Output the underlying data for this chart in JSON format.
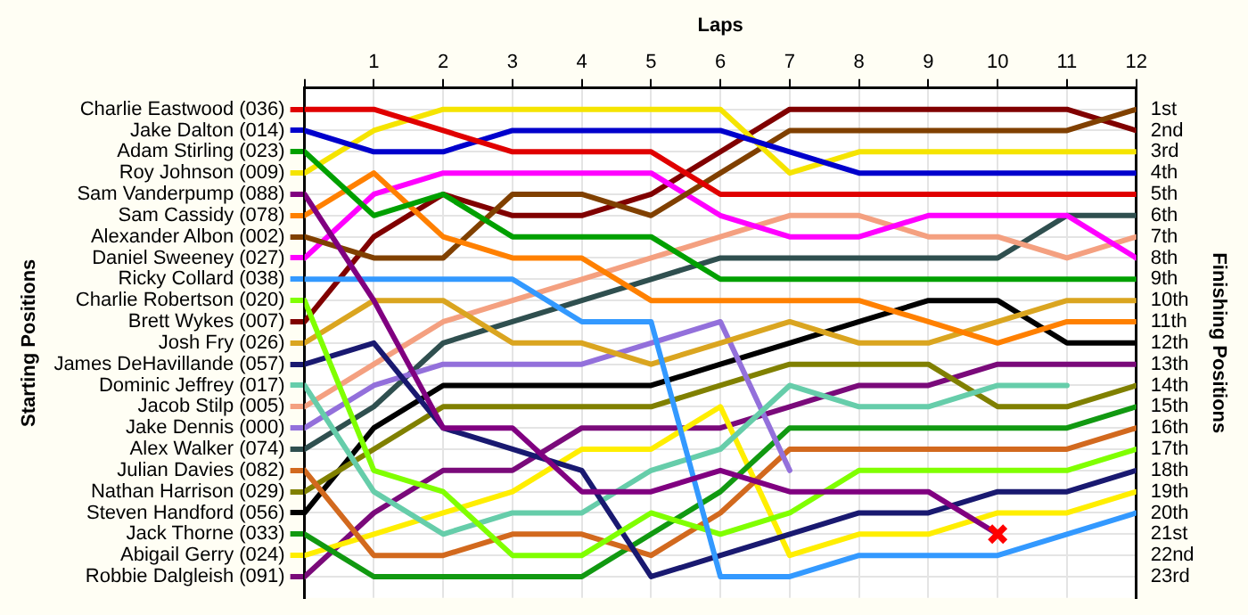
{
  "chart_data": {
    "type": "line",
    "xlabel": "Laps",
    "annotations": [
      "Starting Positions"
    ],
    "y2label": "Finishing Positions",
    "x": [
      0,
      1,
      2,
      3,
      4,
      5,
      6,
      7,
      8,
      9,
      10,
      11,
      12
    ],
    "xlim": [
      0,
      12
    ],
    "xticks": [
      {
        "value": 0,
        "label": null
      },
      1,
      2,
      3,
      4,
      5,
      6,
      7,
      8,
      9,
      10,
      11,
      12
    ],
    "y2lim": [
      24,
      0
    ],
    "y2ticks": [
      {
        "value": 1,
        "label": "1st"
      },
      {
        "value": 2,
        "label": "2nd"
      },
      {
        "value": 3,
        "label": "3rd"
      },
      {
        "value": 4,
        "label": "4th"
      },
      {
        "value": 5,
        "label": "5th"
      },
      {
        "value": 6,
        "label": "6th"
      },
      {
        "value": 7,
        "label": "7th"
      },
      {
        "value": 8,
        "label": "8th"
      },
      {
        "value": 9,
        "label": "9th"
      },
      {
        "value": 10,
        "label": "10th"
      },
      {
        "value": 11,
        "label": "11th"
      },
      {
        "value": 12,
        "label": "12th"
      },
      {
        "value": 13,
        "label": "13th"
      },
      {
        "value": 14,
        "label": "14th"
      },
      {
        "value": 15,
        "label": "15th"
      },
      {
        "value": 16,
        "label": "16th"
      },
      {
        "value": 17,
        "label": "17th"
      },
      {
        "value": 18,
        "label": "18th"
      },
      {
        "value": 19,
        "label": "19th"
      },
      {
        "value": 20,
        "label": "20th"
      },
      {
        "value": 21,
        "label": "21st"
      },
      {
        "value": 22,
        "label": "22nd"
      },
      {
        "value": 23,
        "label": "23rd"
      },
      {
        "value": 24,
        "label": null
      }
    ],
    "grid": true,
    "legend": "left",
    "marker": "none",
    "series": [
      {
        "name": "Charlie Eastwood (036)",
        "axis": "y2",
        "color": "#e00000",
        "values": [
          1,
          1,
          2,
          3,
          3,
          3,
          5,
          5,
          5,
          5,
          5,
          5,
          5
        ]
      },
      {
        "name": "Jake Dalton (014)",
        "axis": "y2",
        "color": "#0000cc",
        "values": [
          2,
          3,
          3,
          2,
          2,
          2,
          2,
          3,
          4,
          4,
          4,
          4,
          4
        ]
      },
      {
        "name": "Adam Stirling (023)",
        "axis": "y2",
        "color": "#00a000",
        "values": [
          3,
          6,
          5,
          7,
          7,
          7,
          9,
          9,
          9,
          9,
          9,
          9,
          9
        ]
      },
      {
        "name": "Roy Johnson (009)",
        "axis": "y2",
        "color": "#f5e400",
        "values": [
          4,
          2,
          1,
          1,
          1,
          1,
          1,
          4,
          3,
          3,
          3,
          3,
          3
        ]
      },
      {
        "name": "Sam Vanderpump (088)",
        "axis": "y2",
        "color": "#800080",
        "values": [
          5,
          10,
          16,
          16,
          19,
          19,
          18,
          19,
          19,
          19,
          21,
          null,
          null
        ]
      },
      {
        "name": "Sam Cassidy (078)",
        "axis": "y2",
        "color": "#ff8000",
        "values": [
          6,
          4,
          7,
          8,
          8,
          10,
          10,
          10,
          10,
          11,
          12,
          11,
          11
        ]
      },
      {
        "name": "Alexander Albon (002)",
        "axis": "y2",
        "color": "#804000",
        "values": [
          7,
          8,
          8,
          5,
          5,
          6,
          4,
          2,
          2,
          2,
          2,
          2,
          1
        ]
      },
      {
        "name": "Daniel Sweeney (027)",
        "axis": "y2",
        "color": "#ff00ff",
        "values": [
          8,
          5,
          4,
          4,
          4,
          4,
          6,
          7,
          7,
          6,
          6,
          6,
          8
        ]
      },
      {
        "name": "Ricky Collard (038)",
        "axis": "y2",
        "color": "#3399ff",
        "values": [
          9,
          9,
          9,
          9,
          11,
          11,
          23,
          23,
          22,
          22,
          22,
          21,
          20
        ]
      },
      {
        "name": "Charlie Robertson (020)",
        "axis": "y2",
        "color": "#80ff00",
        "values": [
          10,
          18,
          19,
          22,
          22,
          20,
          21,
          20,
          18,
          18,
          18,
          18,
          17
        ]
      },
      {
        "name": "Brett Wykes (007)",
        "axis": "y2",
        "color": "#800000",
        "values": [
          11,
          7,
          5,
          6,
          6,
          5,
          3,
          1,
          1,
          1,
          1,
          1,
          2
        ]
      },
      {
        "name": "Josh Fry (026)",
        "axis": "y2",
        "color": "#daa520",
        "values": [
          12,
          10,
          10,
          12,
          12,
          13,
          12,
          11,
          12,
          12,
          11,
          10,
          10
        ]
      },
      {
        "name": "James DeHavillande (057)",
        "axis": "y2",
        "color": "#191970",
        "values": [
          13,
          12,
          16,
          17,
          18,
          23,
          22,
          21,
          20,
          20,
          19,
          19,
          18
        ]
      },
      {
        "name": "Dominic Jeffrey (017)",
        "axis": "y2",
        "color": "#66cdaa",
        "values": [
          14,
          19,
          21,
          20,
          20,
          18,
          17,
          14,
          15,
          15,
          14,
          14,
          null
        ]
      },
      {
        "name": "Jacob Stilp (005)",
        "axis": "y2",
        "color": "#f4a080",
        "values": [
          15,
          13,
          11,
          10,
          9,
          8,
          7,
          6,
          6,
          7,
          7,
          8,
          7
        ]
      },
      {
        "name": "Jake Dennis (000)",
        "axis": "y2",
        "color": "#9370db",
        "values": [
          16,
          14,
          13,
          13,
          13,
          12,
          11,
          18,
          null,
          null,
          null,
          null,
          null
        ]
      },
      {
        "name": "Alex Walker (074)",
        "axis": "y2",
        "color": "#2f4f4f",
        "values": [
          17,
          15,
          12,
          11,
          10,
          9,
          8,
          8,
          8,
          8,
          8,
          6,
          6
        ]
      },
      {
        "name": "Julian Davies (082)",
        "axis": "y2",
        "color": "#d2691e",
        "values": [
          18,
          22,
          22,
          21,
          21,
          22,
          20,
          17,
          17,
          17,
          17,
          17,
          16
        ]
      },
      {
        "name": "Nathan Harrison (029)",
        "axis": "y2",
        "color": "#808000",
        "values": [
          19,
          17,
          15,
          15,
          15,
          15,
          14,
          13,
          13,
          13,
          15,
          15,
          14
        ]
      },
      {
        "name": "Steven Handford (056)",
        "axis": "y2",
        "color": "#000000",
        "values": [
          20,
          16,
          14,
          14,
          14,
          14,
          13,
          12,
          11,
          10,
          10,
          12,
          12
        ]
      },
      {
        "name": "Jack Thorne (033)",
        "axis": "y2",
        "color": "#119911",
        "values": [
          21,
          23,
          23,
          23,
          23,
          21,
          19,
          16,
          16,
          16,
          16,
          16,
          15
        ]
      },
      {
        "name": "Abigail Gerry (024)",
        "axis": "y2",
        "color": "#ffee00",
        "values": [
          22,
          21,
          20,
          19,
          17,
          17,
          15,
          22,
          21,
          21,
          20,
          20,
          19
        ]
      },
      {
        "name": "Robbie Dalgleish (091)",
        "axis": "y2",
        "color": "#7a0a7a",
        "values": [
          23,
          20,
          18,
          18,
          16,
          16,
          16,
          15,
          14,
          14,
          13,
          13,
          13
        ]
      },
      {
        "type": "scatter",
        "axis": "y2",
        "marker": "cross",
        "color": "#ff0000",
        "x": [
          10
        ],
        "values": [
          21
        ]
      }
    ]
  }
}
